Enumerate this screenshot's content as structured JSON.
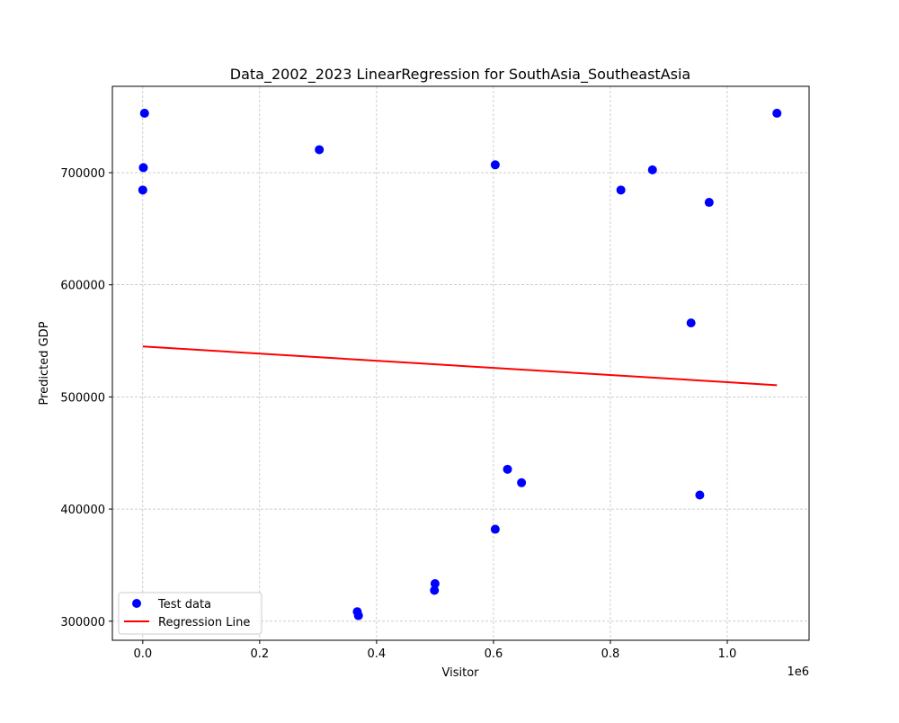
{
  "chart_data": {
    "type": "scatter",
    "title": "Data_2002_2023 LinearRegression for SouthAsia_SoutheastAsia",
    "xlabel": "Visitor",
    "ylabel": "Predicted GDP",
    "x_offset_label": "1e6",
    "xlim": [
      -52000,
      1140000
    ],
    "ylim": [
      283000,
      777000
    ],
    "x_ticks": [
      0,
      200000,
      400000,
      600000,
      800000,
      1000000
    ],
    "x_tick_labels": [
      "0.0",
      "0.2",
      "0.4",
      "0.6",
      "0.8",
      "1.0"
    ],
    "y_ticks": [
      300000,
      400000,
      500000,
      600000,
      700000
    ],
    "y_tick_labels": [
      "300000",
      "400000",
      "500000",
      "600000",
      "700000"
    ],
    "grid": true,
    "legend_position": "lower-left",
    "series": [
      {
        "name": "Test data",
        "kind": "scatter",
        "color": "#0000ff",
        "points": [
          {
            "x": 3000,
            "y": 753000
          },
          {
            "x": 1000,
            "y": 704500
          },
          {
            "x": 0,
            "y": 684500
          },
          {
            "x": 302000,
            "y": 720500
          },
          {
            "x": 603000,
            "y": 707000
          },
          {
            "x": 818000,
            "y": 684500
          },
          {
            "x": 872000,
            "y": 702500
          },
          {
            "x": 969000,
            "y": 673500
          },
          {
            "x": 1085000,
            "y": 753000
          },
          {
            "x": 938000,
            "y": 566000
          },
          {
            "x": 953000,
            "y": 412500
          },
          {
            "x": 624000,
            "y": 435500
          },
          {
            "x": 648000,
            "y": 423500
          },
          {
            "x": 603000,
            "y": 382000
          },
          {
            "x": 500000,
            "y": 333500
          },
          {
            "x": 499000,
            "y": 327500
          },
          {
            "x": 367000,
            "y": 308500
          },
          {
            "x": 369000,
            "y": 305000
          }
        ]
      },
      {
        "name": "Regression Line",
        "kind": "line",
        "color": "#ff0000",
        "points": [
          {
            "x": 0,
            "y": 545000
          },
          {
            "x": 1085000,
            "y": 510500
          }
        ]
      }
    ]
  }
}
